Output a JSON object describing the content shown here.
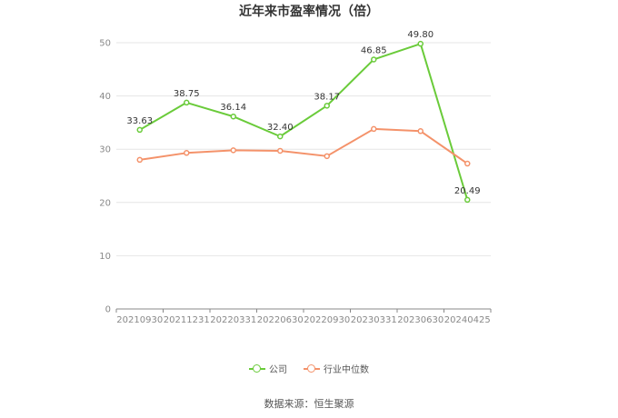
{
  "chart_data": {
    "type": "line",
    "title": "近年来市盈率情况（倍）",
    "categories": [
      "20210930",
      "20211231",
      "20220331",
      "20220630",
      "20220930",
      "20230331",
      "20230630",
      "20240425"
    ],
    "ylim": [
      0,
      50
    ],
    "yticks": [
      0,
      10,
      20,
      30,
      40,
      50
    ],
    "grid": true,
    "legend_position": "bottom",
    "series": [
      {
        "name": "公司",
        "color": "#6acb3a",
        "show_labels": true,
        "values": [
          33.63,
          38.75,
          36.14,
          32.4,
          38.17,
          46.85,
          49.8,
          20.49
        ]
      },
      {
        "name": "行业中位数",
        "color": "#f4926a",
        "show_labels": false,
        "values": [
          28.0,
          29.3,
          29.8,
          29.7,
          28.7,
          33.8,
          33.4,
          27.3
        ]
      }
    ]
  },
  "source_text": "数据来源：恒生聚源"
}
